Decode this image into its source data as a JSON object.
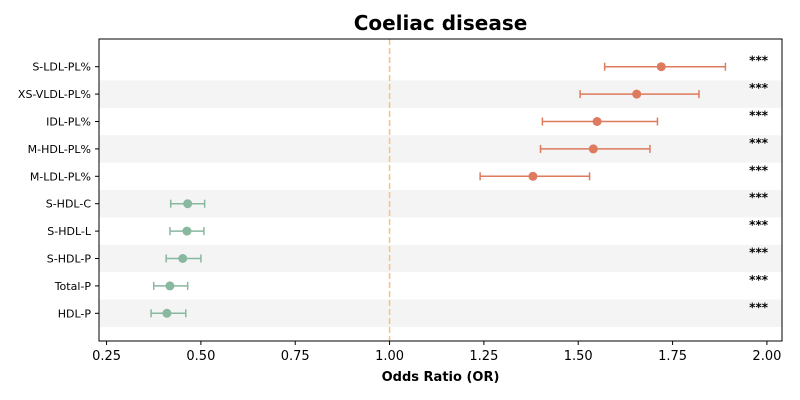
{
  "colors": {
    "increase": "#de7a5e",
    "decrease": "#88b8a0",
    "reference_line": "#f5c27e",
    "stripe": "#f4f4f4"
  },
  "chart_data": {
    "type": "forest",
    "title": "Coeliac disease",
    "xlabel": "Odds Ratio (OR)",
    "ylabel": "",
    "xlim": [
      0.23,
      2.04
    ],
    "xticks": [
      "0.25",
      "0.50",
      "0.75",
      "1.00",
      "1.25",
      "1.50",
      "1.75",
      "2.00"
    ],
    "reference_x": 1.0,
    "grid": false,
    "row_striping": true,
    "rows": [
      {
        "label": "S-LDL-PL%",
        "or": 1.72,
        "lo": 1.57,
        "hi": 1.89,
        "sig": "***",
        "direction": "increase"
      },
      {
        "label": "XS-VLDL-PL%",
        "or": 1.655,
        "lo": 1.505,
        "hi": 1.82,
        "sig": "***",
        "direction": "increase"
      },
      {
        "label": "IDL-PL%",
        "or": 1.55,
        "lo": 1.405,
        "hi": 1.71,
        "sig": "***",
        "direction": "increase"
      },
      {
        "label": "M-HDL-PL%",
        "or": 1.54,
        "lo": 1.4,
        "hi": 1.69,
        "sig": "***",
        "direction": "increase"
      },
      {
        "label": "M-LDL-PL%",
        "or": 1.38,
        "lo": 1.24,
        "hi": 1.53,
        "sig": "***",
        "direction": "increase"
      },
      {
        "label": "S-HDL-C",
        "or": 0.465,
        "lo": 0.42,
        "hi": 0.51,
        "sig": "***",
        "direction": "decrease"
      },
      {
        "label": "S-HDL-L",
        "or": 0.463,
        "lo": 0.418,
        "hi": 0.508,
        "sig": "***",
        "direction": "decrease"
      },
      {
        "label": "S-HDL-P",
        "or": 0.452,
        "lo": 0.408,
        "hi": 0.5,
        "sig": "***",
        "direction": "decrease"
      },
      {
        "label": "Total-P",
        "or": 0.418,
        "lo": 0.375,
        "hi": 0.465,
        "sig": "***",
        "direction": "decrease"
      },
      {
        "label": "HDL-P",
        "or": 0.41,
        "lo": 0.368,
        "hi": 0.46,
        "sig": "***",
        "direction": "decrease"
      }
    ]
  }
}
